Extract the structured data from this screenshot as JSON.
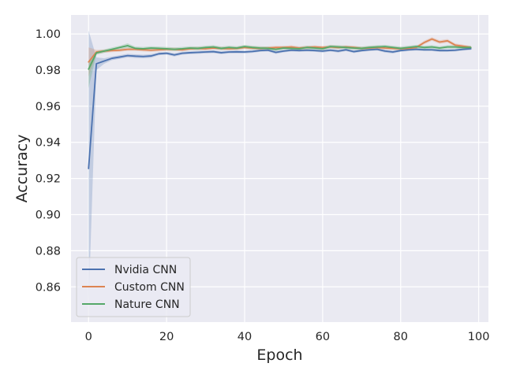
{
  "chart_data": {
    "type": "line",
    "title": "",
    "xlabel": "Epoch",
    "ylabel": "Accuracy",
    "xlim": [
      -4.5,
      102.5
    ],
    "ylim": [
      0.8405,
      1.0105
    ],
    "xticks": [
      0,
      20,
      40,
      60,
      80,
      100
    ],
    "yticks": [
      0.86,
      0.88,
      0.9,
      0.92,
      0.94,
      0.96,
      0.98,
      1.0
    ],
    "xtick_labels": [
      "0",
      "20",
      "40",
      "60",
      "80",
      "100"
    ],
    "ytick_labels": [
      "0.86",
      "0.88",
      "0.90",
      "0.92",
      "0.94",
      "0.96",
      "0.98",
      "1.00"
    ],
    "grid": true,
    "background": "#eaeaf2",
    "legend_position": "lower-left",
    "x": [
      0,
      2,
      4,
      6,
      8,
      10,
      12,
      14,
      16,
      18,
      20,
      22,
      24,
      26,
      28,
      30,
      32,
      34,
      36,
      38,
      40,
      42,
      44,
      46,
      48,
      50,
      52,
      54,
      56,
      58,
      60,
      62,
      64,
      66,
      68,
      70,
      72,
      74,
      76,
      78,
      80,
      82,
      84,
      86,
      88,
      90,
      92,
      94,
      96,
      98
    ],
    "series": [
      {
        "name": "Nvidia CNN",
        "color": "#4c72b0",
        "values": [
          0.9255,
          0.9835,
          0.985,
          0.9865,
          0.9872,
          0.988,
          0.9877,
          0.9875,
          0.9878,
          0.989,
          0.9893,
          0.9884,
          0.9893,
          0.9896,
          0.9898,
          0.99,
          0.9902,
          0.9896,
          0.99,
          0.9901,
          0.99,
          0.9903,
          0.9908,
          0.991,
          0.9898,
          0.9905,
          0.991,
          0.9908,
          0.991,
          0.9908,
          0.9905,
          0.991,
          0.9905,
          0.9912,
          0.9902,
          0.9908,
          0.9912,
          0.9915,
          0.9905,
          0.99,
          0.9908,
          0.9912,
          0.9915,
          0.9912,
          0.9912,
          0.9908,
          0.9908,
          0.991,
          0.9915,
          0.9918
        ],
        "ci_upper": [
          1.002,
          0.987,
          0.9865,
          0.9875,
          0.9882,
          0.989,
          0.9887,
          0.9885,
          0.9888,
          0.9898,
          0.9901,
          0.9893,
          0.9901,
          0.9904,
          0.9906,
          0.9908,
          0.991,
          0.9904,
          0.9908,
          0.9909,
          0.9908,
          0.9911,
          0.9915,
          0.9917,
          0.9907,
          0.9912,
          0.9917,
          0.9915,
          0.9917,
          0.9915,
          0.9913,
          0.9917,
          0.9913,
          0.9919,
          0.991,
          0.9915,
          0.9919,
          0.9922,
          0.9913,
          0.9908,
          0.9915,
          0.9919,
          0.9922,
          0.9919,
          0.9919,
          0.9915,
          0.9915,
          0.9917,
          0.9922,
          0.9925
        ],
        "ci_lower": [
          0.849,
          0.98,
          0.9835,
          0.9855,
          0.9862,
          0.987,
          0.9867,
          0.9865,
          0.9868,
          0.9882,
          0.9885,
          0.9875,
          0.9885,
          0.9888,
          0.989,
          0.9892,
          0.9894,
          0.9888,
          0.9892,
          0.9893,
          0.9892,
          0.9895,
          0.9901,
          0.9903,
          0.9889,
          0.9898,
          0.9903,
          0.9901,
          0.9903,
          0.9901,
          0.9897,
          0.9903,
          0.9897,
          0.9905,
          0.9894,
          0.9901,
          0.9905,
          0.9908,
          0.9897,
          0.9892,
          0.9901,
          0.9905,
          0.9908,
          0.9905,
          0.9905,
          0.9901,
          0.9901,
          0.9903,
          0.9908,
          0.9911
        ]
      },
      {
        "name": "Custom CNN",
        "color": "#dd8452",
        "values": [
          0.9845,
          0.99,
          0.9905,
          0.9908,
          0.991,
          0.9915,
          0.9915,
          0.9912,
          0.991,
          0.9912,
          0.9915,
          0.9915,
          0.9912,
          0.9918,
          0.992,
          0.9918,
          0.9922,
          0.992,
          0.9918,
          0.992,
          0.9925,
          0.9922,
          0.992,
          0.9922,
          0.9925,
          0.9925,
          0.9928,
          0.9922,
          0.9925,
          0.9928,
          0.9925,
          0.9928,
          0.9925,
          0.9928,
          0.9925,
          0.992,
          0.9922,
          0.9925,
          0.9922,
          0.992,
          0.9918,
          0.992,
          0.9925,
          0.9952,
          0.9972,
          0.9955,
          0.9962,
          0.9938,
          0.9932,
          0.9925
        ],
        "ci_upper": [
          0.9925,
          0.9912,
          0.9914,
          0.9917,
          0.9919,
          0.9924,
          0.9924,
          0.9921,
          0.9919,
          0.9921,
          0.9924,
          0.9924,
          0.9921,
          0.9927,
          0.9929,
          0.9927,
          0.9931,
          0.9929,
          0.9927,
          0.9929,
          0.9934,
          0.9931,
          0.9929,
          0.9931,
          0.9934,
          0.9934,
          0.9937,
          0.9931,
          0.9934,
          0.9937,
          0.9934,
          0.9937,
          0.9934,
          0.9937,
          0.9934,
          0.9929,
          0.9931,
          0.9934,
          0.9931,
          0.9929,
          0.9927,
          0.9929,
          0.9934,
          0.9962,
          0.9982,
          0.9965,
          0.9972,
          0.9947,
          0.9941,
          0.9934
        ],
        "ci_lower": [
          0.9765,
          0.9888,
          0.9896,
          0.9899,
          0.9901,
          0.9906,
          0.9906,
          0.9903,
          0.9901,
          0.9903,
          0.9906,
          0.9906,
          0.9903,
          0.9909,
          0.9911,
          0.9909,
          0.9913,
          0.9911,
          0.9909,
          0.9911,
          0.9916,
          0.9913,
          0.9911,
          0.9913,
          0.9916,
          0.9916,
          0.9919,
          0.9913,
          0.9916,
          0.9919,
          0.9916,
          0.9919,
          0.9916,
          0.9919,
          0.9916,
          0.9911,
          0.9913,
          0.9916,
          0.9913,
          0.9911,
          0.9909,
          0.9911,
          0.9916,
          0.9942,
          0.9962,
          0.9945,
          0.9952,
          0.9929,
          0.9923,
          0.9916
        ]
      },
      {
        "name": "Nature CNN",
        "color": "#55a868",
        "values": [
          0.9805,
          0.9895,
          0.9905,
          0.9915,
          0.9925,
          0.9935,
          0.992,
          0.9918,
          0.9922,
          0.992,
          0.9918,
          0.9915,
          0.9918,
          0.9922,
          0.992,
          0.9925,
          0.9928,
          0.992,
          0.9925,
          0.9922,
          0.993,
          0.9925,
          0.9922,
          0.992,
          0.9915,
          0.9922,
          0.992,
          0.9918,
          0.9925,
          0.9922,
          0.9918,
          0.993,
          0.9928,
          0.9925,
          0.9922,
          0.992,
          0.9925,
          0.9928,
          0.993,
          0.9925,
          0.992,
          0.9925,
          0.993,
          0.9925,
          0.9928,
          0.9922,
          0.9928,
          0.9928,
          0.9925,
          0.9925
        ],
        "ci_upper": [
          0.985,
          0.9905,
          0.9915,
          0.9925,
          0.9935,
          0.9948,
          0.993,
          0.9928,
          0.9932,
          0.993,
          0.9928,
          0.9925,
          0.9928,
          0.9932,
          0.993,
          0.9935,
          0.9938,
          0.993,
          0.9935,
          0.9932,
          0.994,
          0.9935,
          0.9932,
          0.993,
          0.9925,
          0.9932,
          0.993,
          0.9928,
          0.9935,
          0.9932,
          0.9928,
          0.994,
          0.9938,
          0.9935,
          0.9932,
          0.993,
          0.9935,
          0.9938,
          0.994,
          0.9935,
          0.993,
          0.9935,
          0.994,
          0.9935,
          0.9938,
          0.9932,
          0.9938,
          0.9938,
          0.9935,
          0.9935
        ],
        "ci_lower": [
          0.97,
          0.9885,
          0.9895,
          0.9905,
          0.9915,
          0.9922,
          0.991,
          0.9908,
          0.9912,
          0.991,
          0.9908,
          0.9905,
          0.9908,
          0.9912,
          0.991,
          0.9915,
          0.9918,
          0.991,
          0.9915,
          0.9912,
          0.992,
          0.9915,
          0.9912,
          0.991,
          0.9905,
          0.9912,
          0.991,
          0.9908,
          0.9915,
          0.9912,
          0.9908,
          0.992,
          0.9918,
          0.9915,
          0.9912,
          0.991,
          0.9915,
          0.9918,
          0.992,
          0.9915,
          0.991,
          0.9915,
          0.992,
          0.9915,
          0.9918,
          0.9912,
          0.9918,
          0.9918,
          0.9915,
          0.9915
        ]
      }
    ]
  }
}
